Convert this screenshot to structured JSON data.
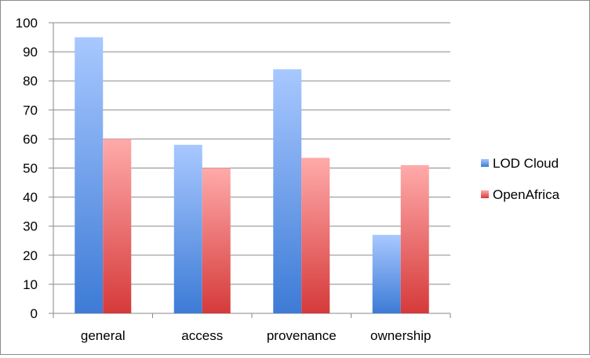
{
  "chart_data": {
    "type": "bar",
    "title": "",
    "xlabel": "",
    "ylabel": "",
    "categories": [
      "general",
      "access",
      "provenance",
      "ownership"
    ],
    "series": [
      {
        "name": "LOD Cloud",
        "values": [
          95,
          58,
          84,
          27
        ],
        "color": "#4f81d6"
      },
      {
        "name": "OpenAfrica",
        "values": [
          60,
          50,
          53.5,
          51
        ],
        "color": "#d94545"
      }
    ],
    "ylim": [
      0,
      100
    ],
    "yticks": [
      0,
      10,
      20,
      30,
      40,
      50,
      60,
      70,
      80,
      90,
      100
    ],
    "grid": true,
    "legend_position": "right"
  }
}
